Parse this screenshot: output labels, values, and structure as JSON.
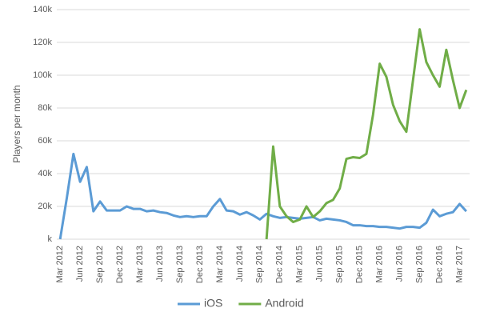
{
  "chart_data": {
    "type": "line",
    "y_label": "Players per month",
    "categories": [
      "Mar 2012",
      null,
      null,
      "Jun 2012",
      null,
      null,
      "Sep 2012",
      null,
      null,
      "Dec 2012",
      null,
      null,
      "Mar 2013",
      null,
      null,
      "Jun 2013",
      null,
      null,
      "Sep 2013",
      null,
      null,
      "Dec 2013",
      null,
      null,
      "Mar 2014",
      null,
      null,
      "Jun 2014",
      null,
      null,
      "Sep 2014",
      null,
      null,
      "Dec 2014",
      null,
      null,
      "Mar 2015",
      null,
      null,
      "Jun 2015",
      null,
      null,
      "Sep 2015",
      null,
      null,
      "Dec 2015",
      null,
      null,
      "Mar 2016",
      null,
      null,
      "Jun 2016",
      null,
      null,
      "Sep 2016",
      null,
      null,
      "Dec 2016",
      null,
      null,
      "Mar 2017",
      null
    ],
    "series": [
      {
        "name": "iOS",
        "color": "#5b9bd5",
        "values": [
          0,
          25000,
          52000,
          35000,
          44000,
          17000,
          23000,
          17500,
          17500,
          17500,
          20000,
          18500,
          18500,
          17000,
          17500,
          16500,
          16000,
          14500,
          13500,
          14000,
          13500,
          14000,
          14000,
          20000,
          24500,
          17500,
          17000,
          15000,
          16500,
          14500,
          12000,
          15500,
          14000,
          13000,
          13500,
          13000,
          12500,
          13000,
          13500,
          11500,
          12500,
          12000,
          11500,
          10500,
          8500,
          8500,
          8000,
          8000,
          7500,
          7500,
          7000,
          6500,
          7500,
          7500,
          7000,
          10000,
          18000,
          14000,
          15500,
          16500,
          21500,
          17000
        ]
      },
      {
        "name": "Android",
        "color": "#70ad47",
        "values": [
          null,
          null,
          null,
          null,
          null,
          null,
          null,
          null,
          null,
          null,
          null,
          null,
          null,
          null,
          null,
          null,
          null,
          null,
          null,
          null,
          null,
          null,
          null,
          null,
          null,
          null,
          null,
          null,
          null,
          null,
          null,
          0,
          56500,
          20000,
          14000,
          10500,
          12000,
          20000,
          13500,
          17000,
          22000,
          24000,
          31000,
          49000,
          50000,
          49500,
          52000,
          76000,
          107000,
          99000,
          82000,
          72000,
          65500,
          97000,
          128000,
          108000,
          100000,
          93000,
          115500,
          97000,
          80000,
          91000
        ]
      }
    ],
    "ylim": [
      0,
      140000
    ],
    "yticks": [
      {
        "value": 0,
        "label": "k"
      },
      {
        "value": 20000,
        "label": "20k"
      },
      {
        "value": 40000,
        "label": "40k"
      },
      {
        "value": 60000,
        "label": "60k"
      },
      {
        "value": 80000,
        "label": "80k"
      },
      {
        "value": 100000,
        "label": "100k"
      },
      {
        "value": 120000,
        "label": "120k"
      },
      {
        "value": 140000,
        "label": "140k"
      }
    ],
    "grid": true,
    "legend": "bottom"
  }
}
